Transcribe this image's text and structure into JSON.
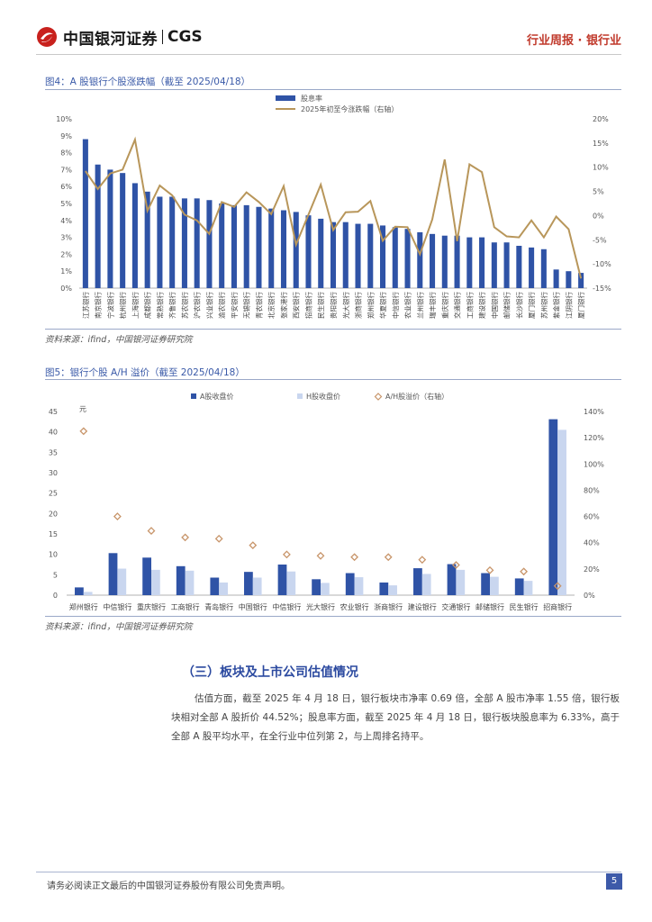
{
  "header": {
    "company_cn": "中国银河证券",
    "company_en": "CGS",
    "report_type": "行业周报 · 银行业"
  },
  "figure4": {
    "title": "图4：A 股银行个股涨跌幅（截至 2025/04/18）",
    "source": "资料来源：ifind，中国银河证券研究院"
  },
  "figure5": {
    "title": "图5：银行个股 A/H 溢价（截至 2025/04/18）",
    "source": "资料来源：ifind，中国银河证券研究院"
  },
  "section": {
    "title": "（三）板块及上市公司估值情况",
    "paragraph": "估值方面，截至 2025 年 4 月 18 日，银行板块市净率 0.69 倍，全部 A 股市净率 1.55 倍，银行板块相对全部 A 股折价 44.52%；股息率方面，截至 2025 年 4 月 18 日，银行板块股息率为 6.33%，高于全部 A 股平均水平，在全行业中位列第 2，与上周排名持平。"
  },
  "footer": {
    "disclaimer": "请务必阅读正文最后的中国银河证券股份有限公司免责声明。",
    "page": "5"
  },
  "chart_data": [
    {
      "type": "bar",
      "name": "figure4",
      "categories": [
        "江苏银行",
        "南京银行",
        "宁波银行",
        "杭州银行",
        "上海银行",
        "成都银行",
        "常熟银行",
        "齐鲁银行",
        "苏农银行",
        "沪农银行",
        "兴业银行",
        "渝农银行",
        "平安银行",
        "无锡银行",
        "青农银行",
        "北京银行",
        "张家港行",
        "西安银行",
        "招商银行",
        "民生银行",
        "贵阳银行",
        "光大银行",
        "浙商银行",
        "郑州银行",
        "华夏银行",
        "中信银行",
        "农业银行",
        "兰州银行",
        "瑞丰银行",
        "重庆银行",
        "交通银行",
        "工商银行",
        "建设银行",
        "中国银行",
        "邮储银行",
        "长沙银行",
        "厦门银行",
        "苏州银行",
        "紫金银行",
        "江阴银行",
        "厦门银行"
      ],
      "series": [
        {
          "name": "股息率",
          "axis": "left",
          "kind": "bar",
          "values": [
            8.8,
            7.3,
            7.0,
            6.8,
            6.2,
            5.7,
            5.4,
            5.4,
            5.3,
            5.3,
            5.2,
            5.0,
            4.9,
            4.9,
            4.8,
            4.7,
            4.6,
            4.5,
            4.3,
            4.1,
            3.9,
            3.9,
            3.8,
            3.8,
            3.7,
            3.6,
            3.5,
            3.3,
            3.2,
            3.1,
            3.1,
            3.0,
            3.0,
            2.7,
            2.7,
            2.5,
            2.4,
            2.3,
            1.1,
            1.0,
            0.9
          ]
        },
        {
          "name": "2025年初至今涨跌幅（右轴）",
          "axis": "right",
          "kind": "line",
          "values": [
            9.2,
            5.5,
            8.7,
            9.5,
            15.7,
            1.0,
            6.2,
            4.2,
            0.2,
            -1.0,
            -3.8,
            2.8,
            1.8,
            4.8,
            2.8,
            0.3,
            6.1,
            -6.0,
            0.2,
            6.4,
            -3.0,
            0.7,
            0.8,
            3.0,
            -5.2,
            -2.3,
            -2.4,
            -8.0,
            -0.8,
            11.6,
            -5.3,
            10.6,
            9.0,
            -2.4,
            -4.3,
            -4.5,
            -1.0,
            -4.5,
            -0.2,
            -2.8,
            -13.0
          ]
        }
      ],
      "yleft": {
        "min": 0,
        "max": 10,
        "ticks": [
          "0%",
          "1%",
          "2%",
          "3%",
          "4%",
          "5%",
          "6%",
          "7%",
          "8%",
          "9%",
          "10%"
        ]
      },
      "yright": {
        "min": -15,
        "max": 20,
        "ticks": [
          "-15%",
          "-10%",
          "-5%",
          "0%",
          "5%",
          "10%",
          "15%",
          "20%"
        ]
      },
      "legend": [
        "股息率",
        "2025年初至今涨跌幅（右轴）"
      ]
    },
    {
      "type": "bar",
      "name": "figure5",
      "unit_label": "元",
      "categories": [
        "郑州银行",
        "中信银行",
        "重庆银行",
        "工商银行",
        "青岛银行",
        "中国银行",
        "中信银行",
        "光大银行",
        "农业银行",
        "浙商银行",
        "建设银行",
        "交通银行",
        "邮储银行",
        "民生银行",
        "招商银行"
      ],
      "series": [
        {
          "name": "A股收盘价",
          "axis": "left",
          "kind": "bar",
          "values": [
            1.9,
            10.3,
            9.2,
            7.1,
            4.3,
            5.7,
            7.5,
            3.9,
            5.4,
            3.1,
            6.6,
            7.6,
            5.4,
            4.1,
            43.1
          ]
        },
        {
          "name": "H股收盘价",
          "axis": "left",
          "kind": "bar",
          "values": [
            0.8,
            6.5,
            6.2,
            6.0,
            3.1,
            4.3,
            5.8,
            3.0,
            4.4,
            2.4,
            5.2,
            6.2,
            4.5,
            3.5,
            40.5
          ]
        },
        {
          "name": "A/H股溢价（右轴）",
          "axis": "right",
          "kind": "scatter",
          "values": [
            125,
            60,
            49,
            44,
            43,
            38,
            31,
            30,
            29,
            29,
            27,
            23,
            19,
            18,
            7
          ]
        }
      ],
      "yleft": {
        "min": 0,
        "max": 45,
        "ticks": [
          "0",
          "5",
          "10",
          "15",
          "20",
          "25",
          "30",
          "35",
          "40",
          "45"
        ]
      },
      "yright": {
        "min": 0,
        "max": 140,
        "ticks": [
          "0%",
          "20%",
          "40%",
          "60%",
          "80%",
          "100%",
          "120%",
          "140%"
        ]
      },
      "legend": [
        "A股收盘价",
        "H股收盘价",
        "A/H股溢价（右轴）"
      ]
    }
  ]
}
